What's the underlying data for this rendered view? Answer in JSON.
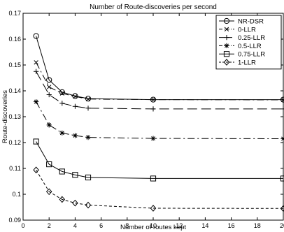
{
  "chart_data": {
    "type": "line",
    "title": "Number of Route-discoveries per second",
    "xlabel": "Number of routes kept",
    "ylabel": "Route-discoveries",
    "xlim": [
      0,
      20
    ],
    "ylim": [
      0.09,
      0.17
    ],
    "xticks": [
      "0",
      "2",
      "4",
      "6",
      "8",
      "10",
      "12",
      "14",
      "16",
      "18",
      "20"
    ],
    "yticks": [
      "0.09",
      "0.1",
      "0.11",
      "0.12",
      "0.13",
      "0.14",
      "0.15",
      "0.16",
      "0.17"
    ],
    "grid": false,
    "legend_position": "top-right",
    "series": [
      {
        "name": "NR-DSR",
        "marker": "circle",
        "line": "solid",
        "x": [
          1,
          2,
          3,
          4,
          5,
          10,
          20
        ],
        "y": [
          0.1612,
          0.1442,
          0.1395,
          0.138,
          0.137,
          0.1366,
          0.1366
        ]
      },
      {
        "name": "0-LLR",
        "marker": "x",
        "line": "dashdot",
        "x": [
          1,
          2,
          3,
          4,
          5,
          10,
          20
        ],
        "y": [
          0.151,
          0.1415,
          0.139,
          0.1378,
          0.1368,
          0.1366,
          0.1365
        ]
      },
      {
        "name": "0.25-LLR",
        "marker": "plus",
        "line": "longdash",
        "x": [
          1,
          2,
          3,
          4,
          5,
          10,
          20
        ],
        "y": [
          0.1475,
          0.1385,
          0.1352,
          0.134,
          0.1333,
          0.133,
          0.133
        ]
      },
      {
        "name": "0.5-LLR",
        "marker": "star",
        "line": "dashdot",
        "x": [
          1,
          2,
          3,
          4,
          5,
          10,
          20
        ],
        "y": [
          0.1358,
          0.1268,
          0.1237,
          0.1227,
          0.122,
          0.1216,
          0.1215
        ]
      },
      {
        "name": "0.75-LLR",
        "marker": "square",
        "line": "solid",
        "x": [
          1,
          2,
          3,
          4,
          5,
          10,
          20
        ],
        "y": [
          0.1204,
          0.1116,
          0.1088,
          0.1075,
          0.1065,
          0.1061,
          0.1061
        ]
      },
      {
        "name": "1-LLR",
        "marker": "diamond",
        "line": "dashed",
        "x": [
          1,
          2,
          3,
          4,
          5,
          10,
          20
        ],
        "y": [
          0.1094,
          0.101,
          0.098,
          0.0966,
          0.0958,
          0.0946,
          0.0945
        ]
      }
    ]
  }
}
